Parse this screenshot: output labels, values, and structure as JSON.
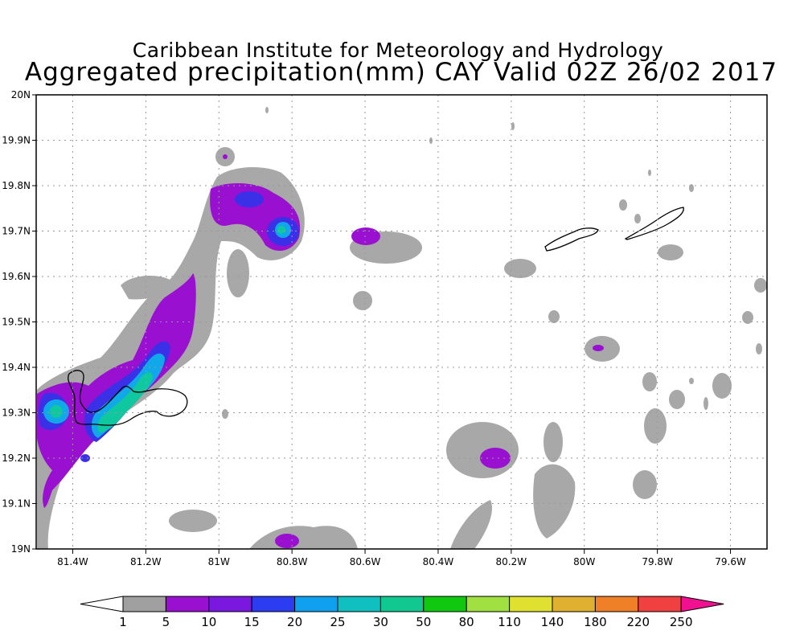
{
  "title": "Caribbean Institute for Meteorology and Hydrology",
  "subtitle": "Aggregated precipitation(mm) CAY Valid 02Z 26/02 2017",
  "x_ticks": [
    "81.4W",
    "81.2W",
    "81W",
    "80.8W",
    "80.6W",
    "80.4W",
    "80.2W",
    "80W",
    "79.8W",
    "79.6W"
  ],
  "y_ticks": [
    "20N",
    "19.9N",
    "19.8N",
    "19.7N",
    "19.6N",
    "19.5N",
    "19.4N",
    "19.3N",
    "19.2N",
    "19.1N",
    "19N"
  ],
  "lon_range": [
    -81.5,
    -79.5
  ],
  "lat_range": [
    19.0,
    20.0
  ],
  "colorbar": {
    "labels": [
      "1",
      "5",
      "10",
      "15",
      "20",
      "25",
      "30",
      "50",
      "80",
      "110",
      "140",
      "180",
      "220",
      "250"
    ],
    "colors": [
      "#a0a0a0",
      "#9a10d0",
      "#7a18e0",
      "#2c3cf0",
      "#10a0f0",
      "#10c0c0",
      "#10c890",
      "#10c810",
      "#a0e040",
      "#e0e030",
      "#e0b030",
      "#f08028",
      "#f04040",
      "#f01090"
    ]
  }
}
